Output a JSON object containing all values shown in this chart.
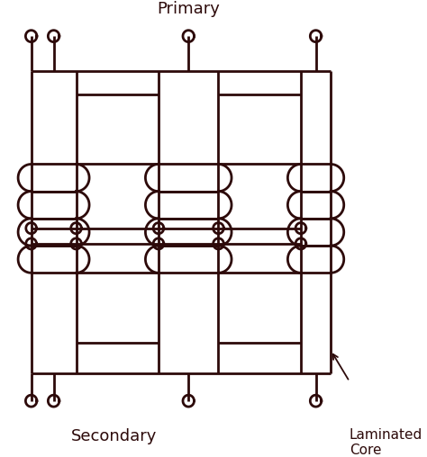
{
  "bg_color": "#ffffff",
  "line_color": "#2d0a0a",
  "lw": 2.0,
  "fig_width": 4.74,
  "fig_height": 5.08,
  "dpi": 100,
  "title": "Primary",
  "secondary_label": "Secondary",
  "core_label": "Laminated\nCore"
}
